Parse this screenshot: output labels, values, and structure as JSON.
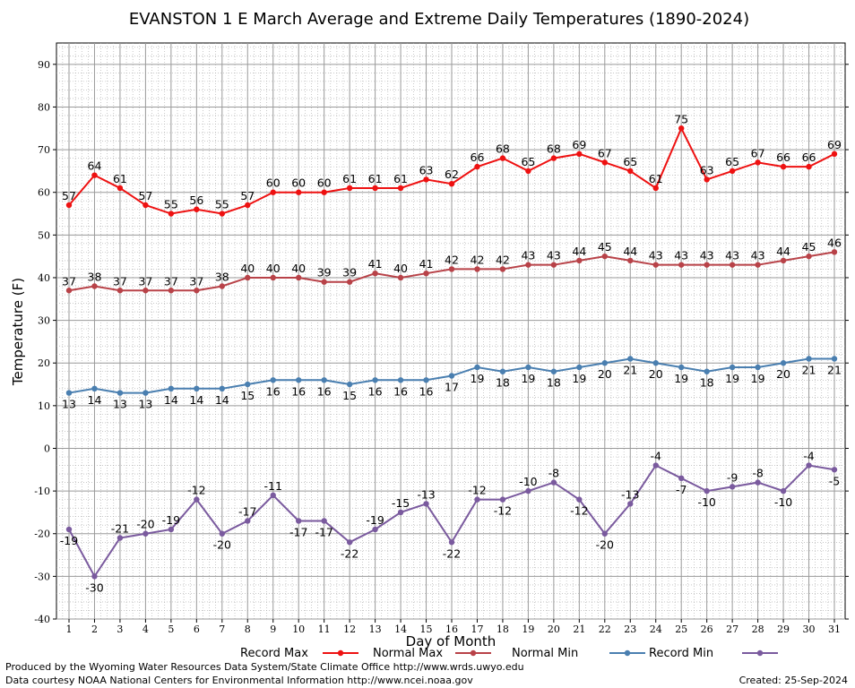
{
  "chart_data": {
    "type": "line",
    "title": "EVANSTON 1 E March Average and Extreme Daily Temperatures (1890-2024)",
    "xlabel": "Day of Month",
    "ylabel": "Temperature (F)",
    "xlim": [
      1,
      31
    ],
    "ylim": [
      -40,
      95
    ],
    "y_ticks": [
      -40,
      -30,
      -20,
      -10,
      0,
      10,
      20,
      30,
      40,
      50,
      60,
      70,
      80,
      90
    ],
    "x": [
      1,
      2,
      3,
      4,
      5,
      6,
      7,
      8,
      9,
      10,
      11,
      12,
      13,
      14,
      15,
      16,
      17,
      18,
      19,
      20,
      21,
      22,
      23,
      24,
      25,
      26,
      27,
      28,
      29,
      30,
      31
    ],
    "grid": true,
    "legend_position": "bottom",
    "series": [
      {
        "name": "Record Max",
        "color": "#ee1111",
        "values": [
          57,
          64,
          61,
          57,
          55,
          56,
          55,
          57,
          60,
          60,
          60,
          61,
          61,
          61,
          63,
          62,
          66,
          68,
          65,
          68,
          69,
          67,
          65,
          61,
          75,
          63,
          65,
          67,
          66,
          66,
          69
        ],
        "labels": [
          "57",
          "64",
          "61",
          "57",
          "55",
          "56",
          "55",
          "57",
          "60",
          "60",
          "60",
          "61",
          "61",
          "61",
          "63",
          "62",
          "66",
          "68",
          "65",
          "68",
          "69",
          "67",
          "65",
          "61",
          "75",
          "63",
          "65",
          "67",
          "66",
          "66",
          "69"
        ]
      },
      {
        "name": "Normal Max",
        "color": "#b84248",
        "values": [
          37,
          38,
          37,
          37,
          37,
          37,
          38,
          40,
          40,
          40,
          39,
          39,
          41,
          40,
          41,
          42,
          42,
          42,
          43,
          43,
          44,
          45,
          44,
          43,
          43,
          43,
          43,
          43,
          44,
          45,
          46
        ],
        "labels": [
          "37",
          "38",
          "37",
          "37",
          "37",
          "37",
          "38",
          "40",
          "40",
          "40",
          "39",
          "39",
          "41",
          "40",
          "41",
          "42",
          "42",
          "42",
          "43",
          "43",
          "44",
          "45",
          "44",
          "43",
          "43",
          "43",
          "43",
          "43",
          "44",
          "45",
          "46"
        ]
      },
      {
        "name": "Normal Min",
        "color": "#4a7fb0",
        "values": [
          13,
          14,
          13,
          13,
          14,
          14,
          14,
          15,
          16,
          16,
          16,
          15,
          16,
          16,
          16,
          17,
          19,
          18,
          19,
          18,
          19,
          20,
          21,
          20,
          19,
          18,
          19,
          19,
          20,
          21,
          21
        ],
        "labels": [
          "13",
          "14",
          "13",
          "13",
          "14",
          "14",
          "14",
          "15",
          "16",
          "16",
          "16",
          "15",
          "16",
          "16",
          "16",
          "17",
          "19",
          "18",
          "19",
          "18",
          "19",
          "20",
          "21",
          "20",
          "19",
          "18",
          "19",
          "19",
          "20",
          "21",
          "21"
        ]
      },
      {
        "name": "Record Min",
        "color": "#7a5a9e",
        "values": [
          -19,
          -30,
          -21,
          -20,
          -19,
          -12,
          -20,
          -17,
          -11,
          -17,
          -17,
          -22,
          -19,
          -15,
          -13,
          -22,
          -12,
          -12,
          -10,
          -8,
          -12,
          -20,
          -13,
          -4,
          -7,
          -10,
          -9,
          -8,
          -10,
          -4,
          -5
        ],
        "labels": [
          "-19",
          "-30",
          "-21",
          "-20",
          "-19",
          "-12",
          "-20",
          "-17",
          "-11",
          "-17",
          "-17",
          "-22",
          "-19",
          "-15",
          "-13",
          "-22",
          "-12",
          "-12",
          "-10",
          "-8",
          "-12",
          "-20",
          "-13",
          "-4",
          "-7",
          "-10",
          "-9",
          "-8",
          "-10",
          "-4",
          "-5"
        ]
      }
    ]
  },
  "footer": {
    "produced_by": "Produced by the Wyoming Water Resources Data System/State Climate Office http://www.wrds.uwyo.edu",
    "courtesy": "Data courtesy NOAA National Centers for Environmental Information http://www.ncei.noaa.gov",
    "created": "Created: 25-Sep-2024"
  }
}
